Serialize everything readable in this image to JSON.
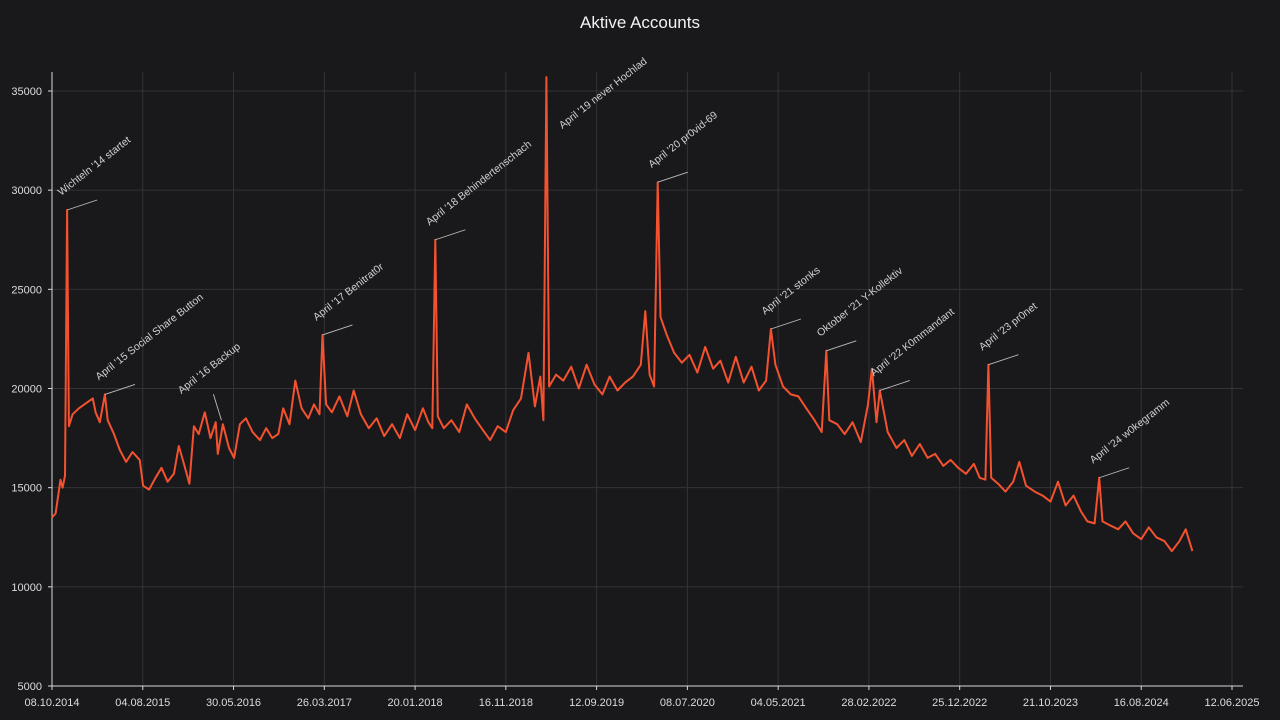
{
  "chart_data": {
    "type": "line",
    "title": "Aktive Accounts",
    "xlabel": "",
    "ylabel": "",
    "x_ticks": [
      "08.10.2014",
      "04.08.2015",
      "30.05.2016",
      "26.03.2017",
      "20.01.2018",
      "16.11.2018",
      "12.09.2019",
      "08.07.2020",
      "04.05.2021",
      "28.02.2022",
      "25.12.2022",
      "21.10.2023",
      "16.08.2024",
      "12.06.2025"
    ],
    "y_ticks": [
      5000,
      10000,
      15000,
      20000,
      25000,
      30000,
      35000
    ],
    "xlim": [
      "2014-10-08",
      "2025-06-12"
    ],
    "ylim": [
      5000,
      36000
    ],
    "grid": true,
    "line_color": "#f4522f",
    "series": [
      {
        "points": [
          [
            "2014-10-08",
            13500
          ],
          [
            "2014-10-20",
            13700
          ],
          [
            "2014-11-05",
            15400
          ],
          [
            "2014-11-12",
            15000
          ],
          [
            "2014-11-20",
            15600
          ],
          [
            "2014-11-27",
            29000
          ],
          [
            "2014-12-03",
            18100
          ],
          [
            "2014-12-15",
            18700
          ],
          [
            "2015-01-05",
            19000
          ],
          [
            "2015-02-01",
            19300
          ],
          [
            "2015-02-20",
            19500
          ],
          [
            "2015-03-01",
            18800
          ],
          [
            "2015-03-15",
            18300
          ],
          [
            "2015-04-01",
            19700
          ],
          [
            "2015-04-10",
            18400
          ],
          [
            "2015-05-01",
            17700
          ],
          [
            "2015-05-20",
            16900
          ],
          [
            "2015-06-10",
            16300
          ],
          [
            "2015-07-01",
            16800
          ],
          [
            "2015-07-25",
            16400
          ],
          [
            "2015-08-05",
            15100
          ],
          [
            "2015-08-25",
            14900
          ],
          [
            "2015-09-15",
            15500
          ],
          [
            "2015-10-05",
            16000
          ],
          [
            "2015-10-25",
            15300
          ],
          [
            "2015-11-15",
            15700
          ],
          [
            "2015-12-01",
            17100
          ],
          [
            "2015-12-20",
            16100
          ],
          [
            "2016-01-05",
            15200
          ],
          [
            "2016-01-20",
            18100
          ],
          [
            "2016-02-05",
            17700
          ],
          [
            "2016-02-25",
            18800
          ],
          [
            "2016-03-15",
            17500
          ],
          [
            "2016-04-01",
            18300
          ],
          [
            "2016-04-08",
            16700
          ],
          [
            "2016-04-25",
            18200
          ],
          [
            "2016-05-15",
            17000
          ],
          [
            "2016-06-01",
            16500
          ],
          [
            "2016-06-20",
            18200
          ],
          [
            "2016-07-10",
            18500
          ],
          [
            "2016-08-01",
            17800
          ],
          [
            "2016-08-25",
            17400
          ],
          [
            "2016-09-15",
            18000
          ],
          [
            "2016-10-05",
            17500
          ],
          [
            "2016-10-25",
            17700
          ],
          [
            "2016-11-10",
            19000
          ],
          [
            "2016-12-01",
            18200
          ],
          [
            "2016-12-20",
            20400
          ],
          [
            "2017-01-10",
            19000
          ],
          [
            "2017-02-01",
            18500
          ],
          [
            "2017-02-20",
            19200
          ],
          [
            "2017-03-10",
            18700
          ],
          [
            "2017-03-20",
            22700
          ],
          [
            "2017-04-01",
            19200
          ],
          [
            "2017-04-20",
            18800
          ],
          [
            "2017-05-15",
            19600
          ],
          [
            "2017-06-10",
            18600
          ],
          [
            "2017-07-01",
            19900
          ],
          [
            "2017-07-25",
            18700
          ],
          [
            "2017-08-20",
            18000
          ],
          [
            "2017-09-15",
            18500
          ],
          [
            "2017-10-10",
            17600
          ],
          [
            "2017-11-05",
            18200
          ],
          [
            "2017-12-01",
            17500
          ],
          [
            "2017-12-25",
            18700
          ],
          [
            "2018-01-20",
            17900
          ],
          [
            "2018-02-15",
            19000
          ],
          [
            "2018-03-05",
            18300
          ],
          [
            "2018-03-18",
            18000
          ],
          [
            "2018-03-28",
            27500
          ],
          [
            "2018-04-05",
            18600
          ],
          [
            "2018-04-25",
            18000
          ],
          [
            "2018-05-20",
            18400
          ],
          [
            "2018-06-15",
            17800
          ],
          [
            "2018-07-10",
            19200
          ],
          [
            "2018-08-05",
            18500
          ],
          [
            "2018-09-01",
            17900
          ],
          [
            "2018-09-25",
            17400
          ],
          [
            "2018-10-20",
            18100
          ],
          [
            "2018-11-16",
            17800
          ],
          [
            "2018-12-10",
            18900
          ],
          [
            "2019-01-05",
            19500
          ],
          [
            "2019-01-30",
            21800
          ],
          [
            "2019-02-20",
            19100
          ],
          [
            "2019-03-10",
            20600
          ],
          [
            "2019-03-20",
            18400
          ],
          [
            "2019-03-30",
            35700
          ],
          [
            "2019-04-08",
            20100
          ],
          [
            "2019-05-01",
            20700
          ],
          [
            "2019-05-25",
            20400
          ],
          [
            "2019-06-20",
            21100
          ],
          [
            "2019-07-15",
            20000
          ],
          [
            "2019-08-10",
            21200
          ],
          [
            "2019-09-05",
            20200
          ],
          [
            "2019-10-01",
            19700
          ],
          [
            "2019-10-25",
            20600
          ],
          [
            "2019-11-20",
            19900
          ],
          [
            "2019-12-15",
            20300
          ],
          [
            "2020-01-10",
            20600
          ],
          [
            "2020-02-05",
            21200
          ],
          [
            "2020-02-20",
            23900
          ],
          [
            "2020-03-05",
            20700
          ],
          [
            "2020-03-20",
            20100
          ],
          [
            "2020-04-01",
            30400
          ],
          [
            "2020-04-10",
            23600
          ],
          [
            "2020-05-01",
            22700
          ],
          [
            "2020-05-25",
            21800
          ],
          [
            "2020-06-20",
            21300
          ],
          [
            "2020-07-15",
            21700
          ],
          [
            "2020-08-10",
            20800
          ],
          [
            "2020-09-05",
            22100
          ],
          [
            "2020-10-01",
            21000
          ],
          [
            "2020-10-25",
            21400
          ],
          [
            "2020-11-20",
            20300
          ],
          [
            "2020-12-15",
            21600
          ],
          [
            "2021-01-10",
            20300
          ],
          [
            "2021-02-05",
            21100
          ],
          [
            "2021-03-01",
            19900
          ],
          [
            "2021-03-25",
            20400
          ],
          [
            "2021-04-10",
            23000
          ],
          [
            "2021-04-25",
            21200
          ],
          [
            "2021-05-20",
            20100
          ],
          [
            "2021-06-15",
            19700
          ],
          [
            "2021-07-10",
            19600
          ],
          [
            "2021-08-05",
            19000
          ],
          [
            "2021-09-01",
            18400
          ],
          [
            "2021-09-25",
            17800
          ],
          [
            "2021-10-10",
            21900
          ],
          [
            "2021-10-20",
            18400
          ],
          [
            "2021-11-15",
            18200
          ],
          [
            "2021-12-10",
            17700
          ],
          [
            "2022-01-05",
            18300
          ],
          [
            "2022-02-01",
            17300
          ],
          [
            "2022-02-25",
            19200
          ],
          [
            "2022-03-10",
            21000
          ],
          [
            "2022-03-25",
            18300
          ],
          [
            "2022-04-05",
            19900
          ],
          [
            "2022-05-01",
            17800
          ],
          [
            "2022-05-30",
            17000
          ],
          [
            "2022-06-25",
            17400
          ],
          [
            "2022-07-20",
            16600
          ],
          [
            "2022-08-15",
            17200
          ],
          [
            "2022-09-10",
            16500
          ],
          [
            "2022-10-05",
            16700
          ],
          [
            "2022-11-01",
            16100
          ],
          [
            "2022-11-25",
            16400
          ],
          [
            "2022-12-20",
            16000
          ],
          [
            "2023-01-15",
            15700
          ],
          [
            "2023-02-10",
            16200
          ],
          [
            "2023-03-01",
            15500
          ],
          [
            "2023-03-20",
            15400
          ],
          [
            "2023-03-30",
            21200
          ],
          [
            "2023-04-08",
            15500
          ],
          [
            "2023-05-01",
            15200
          ],
          [
            "2023-05-25",
            14800
          ],
          [
            "2023-06-20",
            15300
          ],
          [
            "2023-07-10",
            16300
          ],
          [
            "2023-08-01",
            15100
          ],
          [
            "2023-08-30",
            14800
          ],
          [
            "2023-09-25",
            14600
          ],
          [
            "2023-10-21",
            14300
          ],
          [
            "2023-11-15",
            15300
          ],
          [
            "2023-12-10",
            14100
          ],
          [
            "2024-01-05",
            14600
          ],
          [
            "2024-01-30",
            13800
          ],
          [
            "2024-02-20",
            13300
          ],
          [
            "2024-03-15",
            13200
          ],
          [
            "2024-03-30",
            15500
          ],
          [
            "2024-04-10",
            13300
          ],
          [
            "2024-05-05",
            13100
          ],
          [
            "2024-06-01",
            12900
          ],
          [
            "2024-06-25",
            13300
          ],
          [
            "2024-07-20",
            12700
          ],
          [
            "2024-08-16",
            12400
          ],
          [
            "2024-09-10",
            13000
          ],
          [
            "2024-10-05",
            12500
          ],
          [
            "2024-11-01",
            12300
          ],
          [
            "2024-11-25",
            11800
          ],
          [
            "2024-12-20",
            12300
          ],
          [
            "2025-01-10",
            12900
          ],
          [
            "2025-02-01",
            11800
          ]
        ]
      }
    ],
    "annotations": [
      {
        "text": "Wichteln '14 startet",
        "date": "2014-11-27",
        "value": 29000,
        "label_side": "right"
      },
      {
        "text": "April '15 Social Share Button",
        "date": "2015-04-01",
        "value": 19700,
        "label_side": "right"
      },
      {
        "text": "April '16 Backup",
        "date": "2016-04-20",
        "value": 18400,
        "label_side": "left"
      },
      {
        "text": "April '17 Benitrat0r",
        "date": "2017-03-20",
        "value": 22700,
        "label_side": "right"
      },
      {
        "text": "April '18 Behindertenschach",
        "date": "2018-03-28",
        "value": 27500,
        "label_side": "right"
      },
      {
        "text": "April '19 never Hochlad",
        "date": "2019-03-30",
        "value": 35700,
        "label_side": "none"
      },
      {
        "text": "April '20 pr0vid-69",
        "date": "2020-04-01",
        "value": 30400,
        "label_side": "right"
      },
      {
        "text": "April '21 stonks",
        "date": "2021-04-10",
        "value": 23000,
        "label_side": "right"
      },
      {
        "text": "Oktober '21 Y-Kollektiv",
        "date": "2021-10-10",
        "value": 21900,
        "label_side": "right"
      },
      {
        "text": "April '22 K0mmandant",
        "date": "2022-04-05",
        "value": 19900,
        "label_side": "right"
      },
      {
        "text": "April '23 pr0net",
        "date": "2023-03-30",
        "value": 21200,
        "label_side": "right"
      },
      {
        "text": "April '24 w0kegramm",
        "date": "2024-03-30",
        "value": 15500,
        "label_side": "right"
      }
    ]
  }
}
